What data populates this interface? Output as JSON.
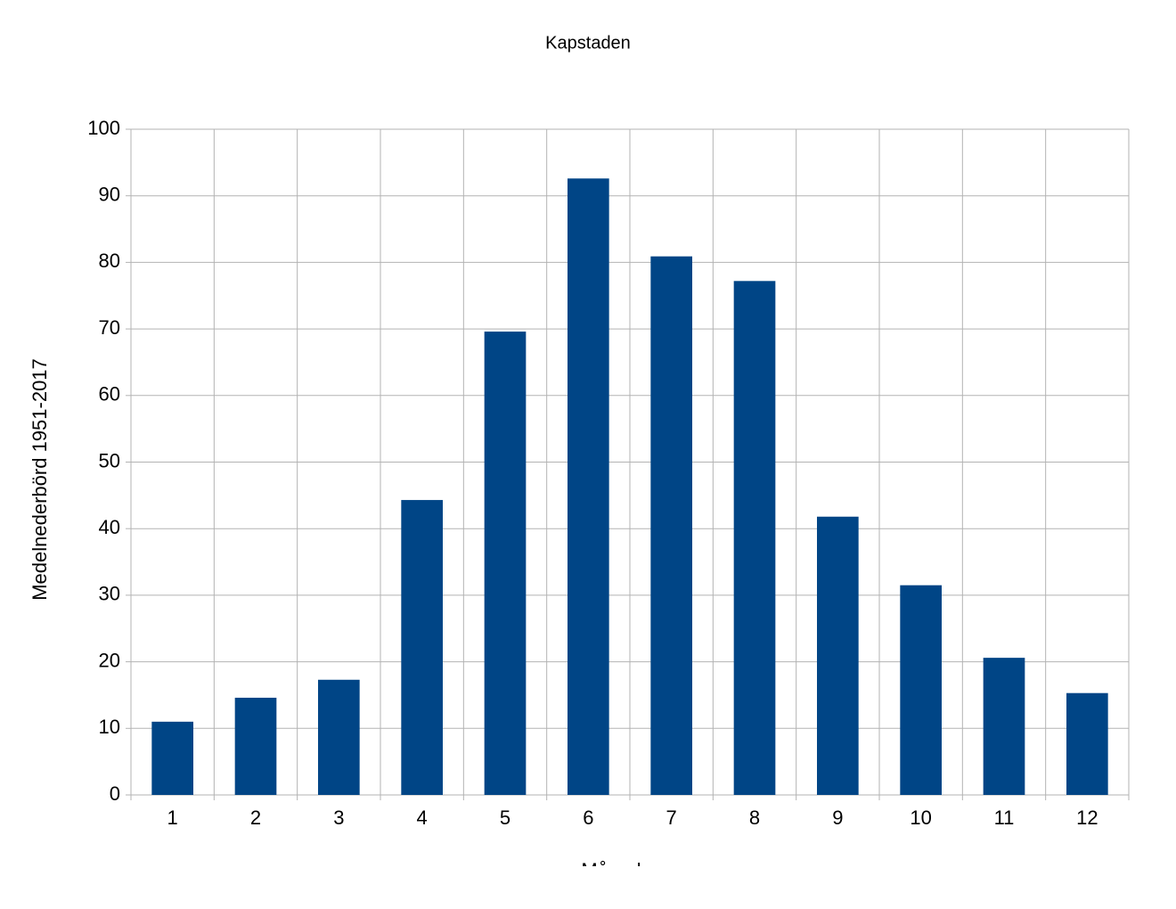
{
  "chart_data": {
    "type": "bar",
    "title": "Kapstaden",
    "x_label": "Månad",
    "y_label": "Medelnederbörd 1951-2017",
    "categories": [
      "1",
      "2",
      "3",
      "4",
      "5",
      "6",
      "7",
      "8",
      "9",
      "10",
      "11",
      "12"
    ],
    "values": [
      11.0,
      14.6,
      17.3,
      44.3,
      69.6,
      92.6,
      80.9,
      77.2,
      41.8,
      31.5,
      20.6,
      15.3
    ],
    "color": "#004586",
    "ylim": [
      0,
      100
    ],
    "yticks": [
      0,
      10,
      20,
      30,
      40,
      50,
      60,
      70,
      80,
      90,
      100
    ],
    "grid": true
  }
}
